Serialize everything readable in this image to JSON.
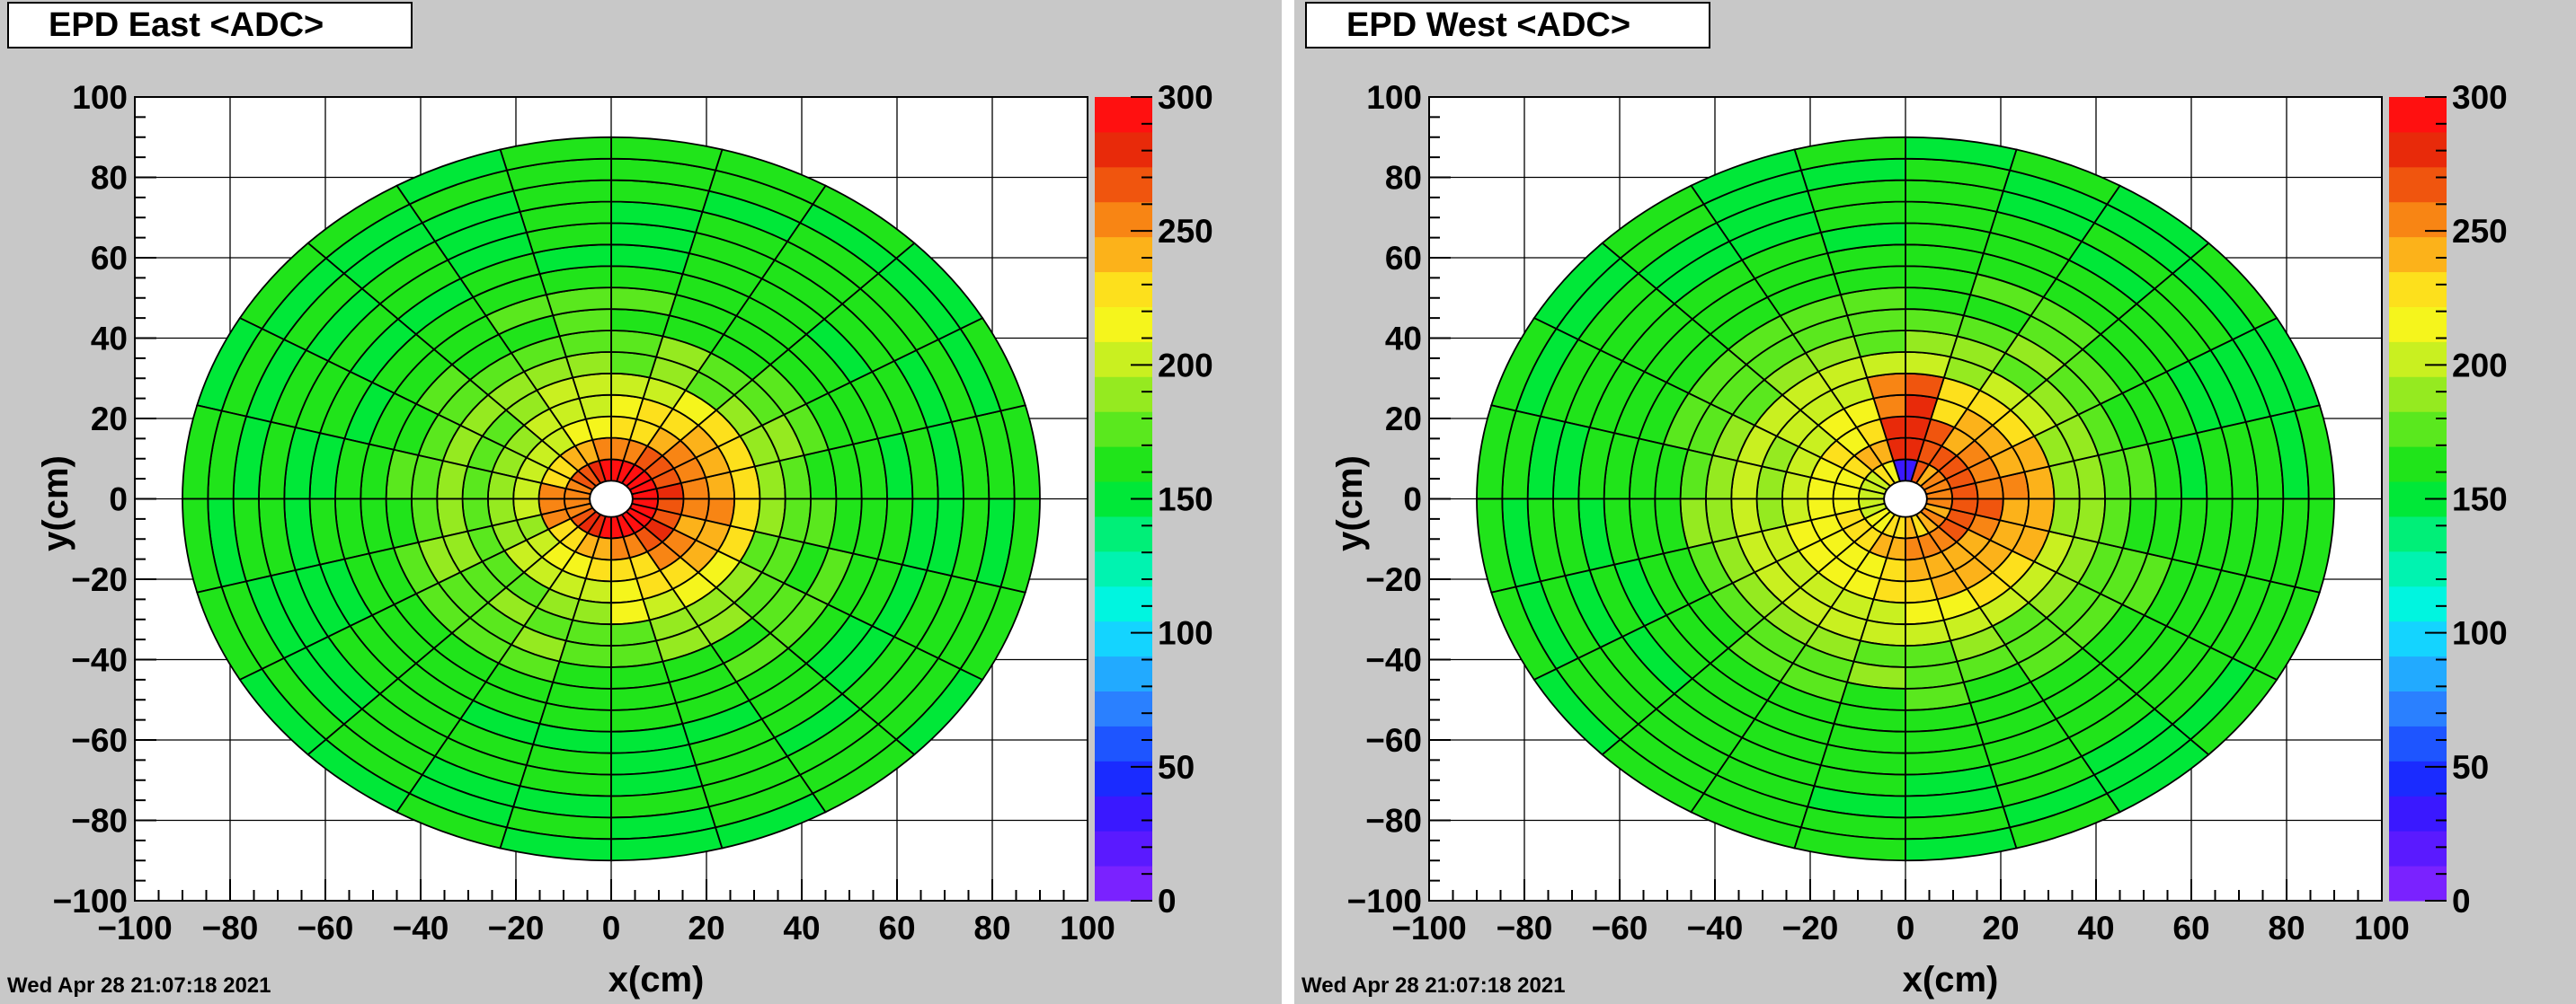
{
  "chart_data": [
    {
      "type": "heatmap",
      "title": "EPD East <ADC>",
      "xlabel": "x(cm)",
      "ylabel": "y(cm)",
      "xlim": [
        -100,
        100
      ],
      "ylim": [
        -100,
        100
      ],
      "x_ticks": [
        -100,
        -80,
        -60,
        -40,
        -20,
        0,
        20,
        40,
        60,
        80,
        100
      ],
      "y_ticks": [
        -100,
        -80,
        -60,
        -40,
        -20,
        0,
        20,
        40,
        60,
        80,
        100
      ],
      "zlim": [
        0,
        300
      ],
      "z_ticks": [
        0,
        50,
        100,
        150,
        200,
        250,
        300
      ],
      "grid": true,
      "rings": 16,
      "sectors": 24,
      "ring_center_values": [
        290,
        250,
        225,
        215,
        200,
        185,
        178,
        170,
        165,
        162,
        160,
        160,
        158,
        158,
        158,
        158
      ],
      "datestamp": "Wed Apr 28 21:07:18 2021"
    },
    {
      "type": "heatmap",
      "title": "EPD West <ADC>",
      "xlabel": "x(cm)",
      "ylabel": "y(cm)",
      "xlim": [
        -100,
        100
      ],
      "ylim": [
        -100,
        100
      ],
      "x_ticks": [
        -100,
        -80,
        -60,
        -40,
        -20,
        0,
        20,
        40,
        60,
        80,
        100
      ],
      "y_ticks": [
        -100,
        -80,
        -60,
        -40,
        -20,
        0,
        20,
        40,
        60,
        80,
        100
      ],
      "zlim": [
        0,
        300
      ],
      "z_ticks": [
        0,
        50,
        100,
        150,
        200,
        250,
        300
      ],
      "grid": true,
      "rings": 16,
      "sectors": 24,
      "ring_center_values": [
        230,
        245,
        235,
        225,
        215,
        200,
        185,
        178,
        170,
        165,
        162,
        160,
        160,
        158,
        158,
        158
      ],
      "datestamp": "Wed Apr 28 21:07:18 2021"
    }
  ],
  "palette": [
    "#7a22ff",
    "#5a1aff",
    "#3a18ff",
    "#1a2bff",
    "#1e55ff",
    "#2a80ff",
    "#22aaff",
    "#14d4ff",
    "#00f5e0",
    "#00f3b0",
    "#00ef78",
    "#00e838",
    "#20e41a",
    "#5ae81e",
    "#95ea20",
    "#c9f020",
    "#f5f51c",
    "#fde01c",
    "#fcb21a",
    "#f88514",
    "#f0550e",
    "#e82a0a",
    "#ff1010"
  ]
}
